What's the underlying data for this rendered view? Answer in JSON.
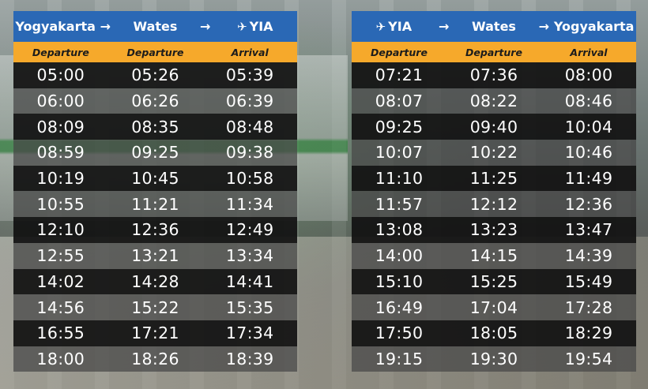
{
  "left": {
    "route": [
      "Yogyakarta",
      "Wates",
      "YIA"
    ],
    "headers": [
      "Departure",
      "Departure",
      "Arrival"
    ],
    "rows": [
      [
        "05:00",
        "05:26",
        "05:39"
      ],
      [
        "06:00",
        "06:26",
        "06:39"
      ],
      [
        "08:09",
        "08:35",
        "08:48"
      ],
      [
        "08:59",
        "09:25",
        "09:38"
      ],
      [
        "10:19",
        "10:45",
        "10:58"
      ],
      [
        "10:55",
        "11:21",
        "11:34"
      ],
      [
        "12:10",
        "12:36",
        "12:49"
      ],
      [
        "12:55",
        "13:21",
        "13:34"
      ],
      [
        "14:02",
        "14:28",
        "14:41"
      ],
      [
        "14:56",
        "15:22",
        "15:35"
      ],
      [
        "16:55",
        "17:21",
        "17:34"
      ],
      [
        "18:00",
        "18:26",
        "18:39"
      ]
    ]
  },
  "right": {
    "route": [
      "YIA",
      "Wates",
      "Yogyakarta"
    ],
    "headers": [
      "Departure",
      "Departure",
      "Arrival"
    ],
    "rows": [
      [
        "07:21",
        "07:36",
        "08:00"
      ],
      [
        "08:07",
        "08:22",
        "08:46"
      ],
      [
        "09:25",
        "09:40",
        "10:04"
      ],
      [
        "10:07",
        "10:22",
        "10:46"
      ],
      [
        "11:10",
        "11:25",
        "11:49"
      ],
      [
        "11:57",
        "12:12",
        "12:36"
      ],
      [
        "13:08",
        "13:23",
        "13:47"
      ],
      [
        "14:00",
        "14:15",
        "14:39"
      ],
      [
        "15:10",
        "15:25",
        "15:49"
      ],
      [
        "16:49",
        "17:04",
        "17:28"
      ],
      [
        "17:50",
        "18:05",
        "18:29"
      ],
      [
        "19:15",
        "19:30",
        "19:54"
      ]
    ]
  },
  "icons": {
    "arrow": "right-arrow-icon",
    "airport": "airplane-icon"
  },
  "colors": {
    "route_bar": "#2a68b5",
    "header_bar": "#f6a92b",
    "row_dark": "#121212",
    "row_light": "#464646"
  }
}
